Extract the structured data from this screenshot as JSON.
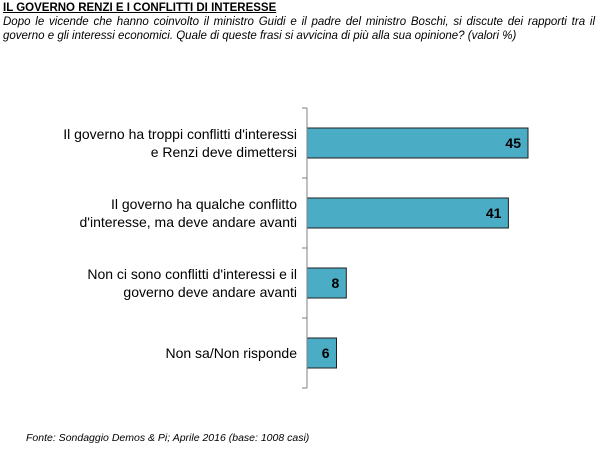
{
  "header": {
    "title": "IL GOVERNO RENZI E I CONFLITTI DI INTERESSE",
    "subtitle": "Dopo le vicende che hanno coinvolto il ministro Guidi e il padre del ministro Boschi, si discute dei rapporti tra il governo e gli interessi economici. Quale di queste frasi si avvicina di più alla sua opinione? (valori %)"
  },
  "footer": {
    "source": "Fonte: Sondaggio Demos & Pi; Aprile 2016 (base: 1008 casi)"
  },
  "chart_data": {
    "type": "bar",
    "orientation": "horizontal",
    "categories": [
      [
        "Il governo  ha troppi conflitti d'interessi",
        "e Renzi deve dimettersi"
      ],
      [
        "Il governo ha qualche conflitto",
        "d'interesse, ma deve andare avanti"
      ],
      [
        "Non ci sono conflitti d'interessi e il",
        "governo deve andare avanti"
      ],
      [
        "Non sa/Non risponde"
      ]
    ],
    "values": [
      45,
      41,
      8,
      6
    ],
    "unit": "%",
    "xlim": [
      0,
      60
    ],
    "grid": false,
    "legend": "none",
    "bar_color": "#4bacc6",
    "bar_border_color": "#1f1f1f",
    "axis_color": "#808080"
  }
}
